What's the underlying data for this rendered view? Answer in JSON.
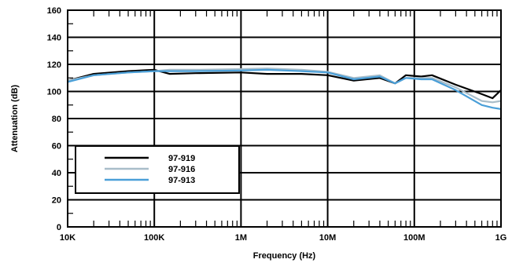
{
  "chart_data": {
    "type": "line",
    "xscale": "log",
    "xlabel": "Frequency (Hz)",
    "ylabel": "Attenuation (dB)",
    "xlim": [
      10000,
      1000000000
    ],
    "ylim": [
      0,
      160
    ],
    "grid": true,
    "legend_position": "bottom-left",
    "x_ticks": [
      {
        "value": 10000,
        "label": "10K"
      },
      {
        "value": 100000,
        "label": "100K"
      },
      {
        "value": 1000000,
        "label": "1M"
      },
      {
        "value": 10000000,
        "label": "10M"
      },
      {
        "value": 100000000,
        "label": "100M"
      },
      {
        "value": 1000000000,
        "label": "1G"
      }
    ],
    "y_ticks": [
      {
        "value": 0,
        "label": "0"
      },
      {
        "value": 20,
        "label": "20"
      },
      {
        "value": 40,
        "label": "40"
      },
      {
        "value": 60,
        "label": "60"
      },
      {
        "value": 80,
        "label": "80"
      },
      {
        "value": 100,
        "label": "100"
      },
      {
        "value": 120,
        "label": "120"
      },
      {
        "value": 140,
        "label": "140"
      },
      {
        "value": 160,
        "label": "160"
      }
    ],
    "series": [
      {
        "name": "97-919",
        "color": "#000000",
        "x": [
          10000,
          20000,
          50000,
          100000,
          150000,
          300000,
          1000000,
          2000000,
          5000000,
          10000000,
          20000000,
          40000000,
          60000000,
          80000000,
          120000000,
          160000000,
          300000000,
          600000000,
          800000000,
          1000000000
        ],
        "y": [
          108,
          113,
          115,
          116,
          113,
          113.5,
          114,
          113,
          113,
          112,
          108,
          110,
          106,
          112,
          111,
          112,
          105,
          98,
          95,
          101
        ]
      },
      {
        "name": "97-916",
        "color": "#a9bdc9",
        "x": [
          10000,
          20000,
          50000,
          100000,
          150000,
          300000,
          1000000,
          2000000,
          5000000,
          10000000,
          20000000,
          40000000,
          60000000,
          80000000,
          120000000,
          160000000,
          300000000,
          600000000,
          800000000,
          1000000000
        ],
        "y": [
          108,
          112,
          114,
          115,
          116,
          116,
          116.5,
          117,
          116,
          114.5,
          110,
          112,
          106,
          110,
          110,
          110,
          103,
          93,
          92,
          93
        ]
      },
      {
        "name": "97-913",
        "color": "#4a9fd8",
        "x": [
          10000,
          20000,
          50000,
          100000,
          150000,
          300000,
          1000000,
          2000000,
          5000000,
          10000000,
          20000000,
          40000000,
          60000000,
          80000000,
          120000000,
          160000000,
          300000000,
          600000000,
          800000000,
          1000000000
        ],
        "y": [
          107,
          112,
          114,
          115,
          115,
          115,
          115.5,
          116,
          115,
          114,
          109,
          111,
          106,
          110,
          109,
          109,
          101,
          90,
          88,
          87
        ]
      }
    ]
  }
}
